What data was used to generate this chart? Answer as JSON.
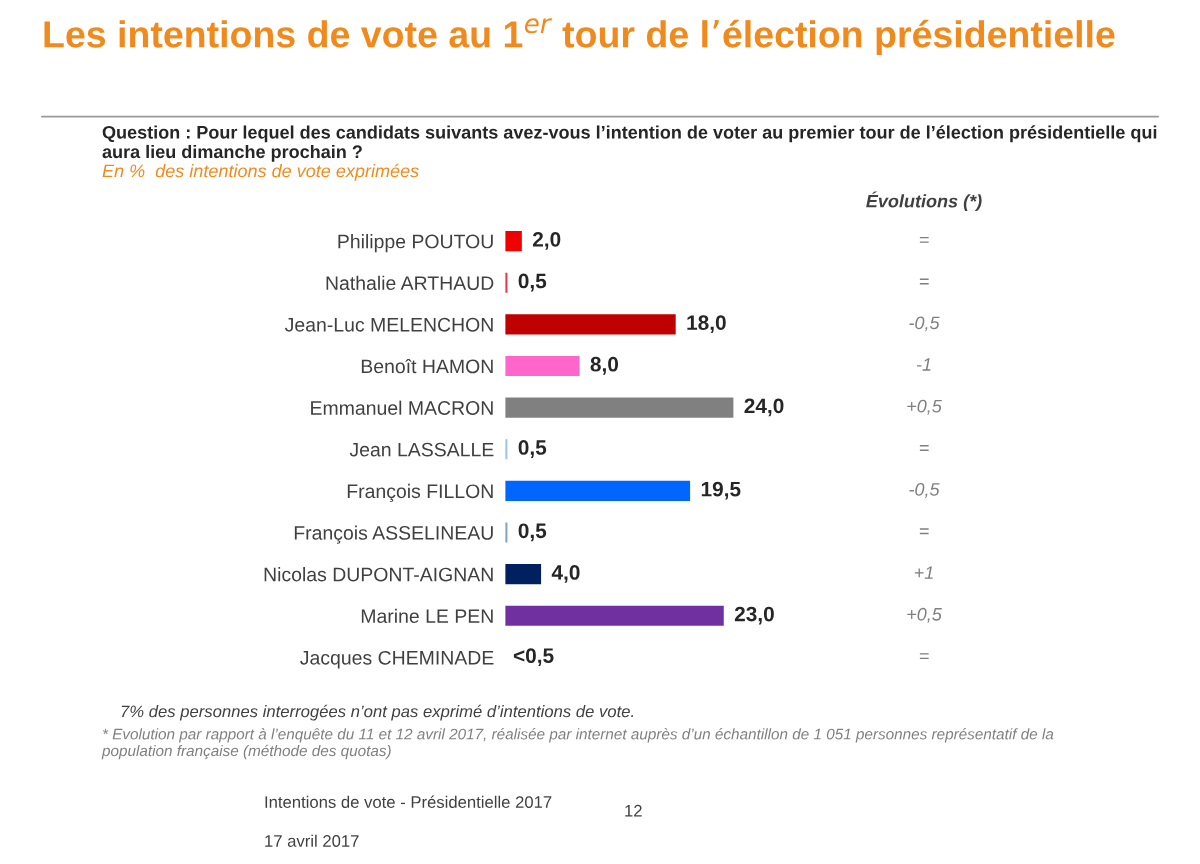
{
  "chart_data": {
    "type": "bar",
    "orientation": "horizontal",
    "title": "Les intentions de vote au 1$^{er}$ tour de l’élection présidentielle",
    "subtitle": "Question : Pour lequel des candidats suivants avez-vous l’intention de voter au premier tour de l’élection présidentielle qui aura lieu dimanche prochain ?",
    "categories": [
      "Philippe POUTOU",
      "Nathalie ARTHAUD",
      "Jean-Luc MELENCHON",
      "Benoît HAMON",
      "Emmanuel MACRON",
      "Jean LASSALLE",
      "François FILLON",
      "François ASSELINEAU",
      "Nicolas DUPONT-AIGNAN",
      "Marine LE PEN",
      "Jacques CHEMINADE"
    ],
    "values": [
      2.0,
      0.5,
      18.0,
      8.0,
      24.0,
      0.5,
      19.5,
      0.5,
      4.0,
      23.0,
      null
    ],
    "colors": [
      "#f00000",
      "#e8364a",
      "#c00000",
      "#ff66cc",
      "#808080",
      "#9dc3e6",
      "#0066ff",
      "#7fa6c0",
      "#002060",
      "#7030a0",
      "#ffffff"
    ],
    "value_labels": [
      "2,0",
      "0,5",
      "18,0",
      "8,0",
      "24,0",
      "0,5",
      "19,5",
      "0,5",
      "4,0",
      "23,0",
      "<0,5"
    ],
    "tick_labels": "y",
    "grid": false,
    "legend": false,
    "annotations": [
      "En %  des intentions de vote exprimées",
      "Évolutions (*)",
      "=",
      "=",
      "-0,5",
      "-1",
      "+0,5",
      "=",
      "-0,5",
      "=",
      "+1",
      "+0,5",
      "=",
      "7% des personnes interrogées n’ont pas exprimé d’intentions de vote.",
      "* Evolution par rapport à l’enquête du 11 et 12 avril 2017, réalisée par internet auprès d’un échantillon de 1 051 personnes représentatif de la population française (méthode des quotas)",
      "Intentions de vote - Présidentielle 2017",
      "17 avril 2017",
      "12"
    ]
  }
}
